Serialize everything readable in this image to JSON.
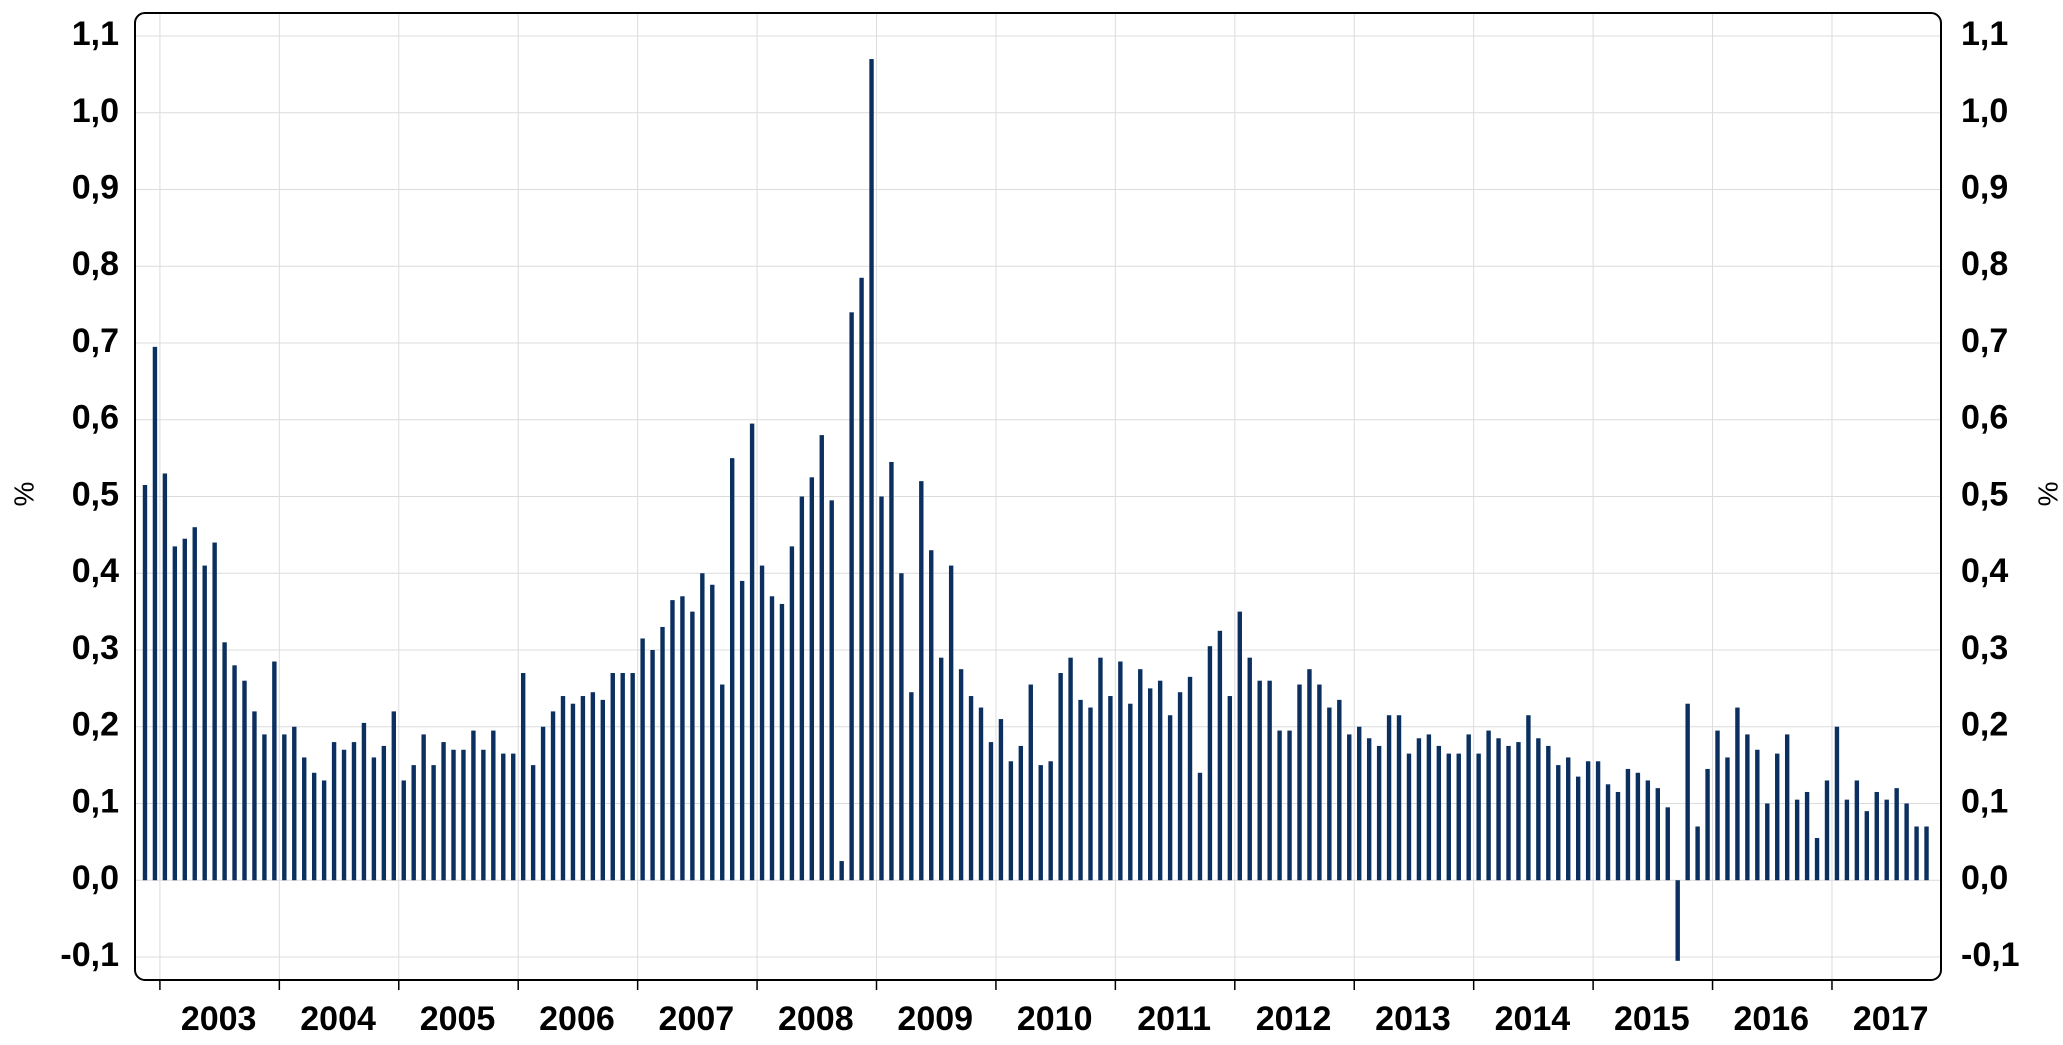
{
  "chart_data": {
    "type": "bar",
    "color": "#0b3060",
    "grid": true,
    "y_label": "%",
    "y2_label": "%",
    "ylim": [
      -0.13,
      1.13
    ],
    "yticks": [
      {
        "value": -0.1,
        "label": "-0,1"
      },
      {
        "value": 0,
        "label": "0,0"
      },
      {
        "value": 0.1,
        "label": "0,1"
      },
      {
        "value": 0.2,
        "label": "0,2"
      },
      {
        "value": 0.3,
        "label": "0,3"
      },
      {
        "value": 0.4,
        "label": "0,4"
      },
      {
        "value": 0.5,
        "label": "0,5"
      },
      {
        "value": 0.6,
        "label": "0,6"
      },
      {
        "value": 0.7,
        "label": "0,7"
      },
      {
        "value": 0.8,
        "label": "0,8"
      },
      {
        "value": 0.9,
        "label": "0,9"
      },
      {
        "value": 1.0,
        "label": "1,0"
      },
      {
        "value": 1.1,
        "label": "1,1"
      }
    ],
    "y2lim": [
      -0.13,
      1.13
    ],
    "y2ticks": [
      {
        "value": -0.1,
        "label": "-0,1"
      },
      {
        "value": 0,
        "label": "0,0"
      },
      {
        "value": 0.1,
        "label": "0,1"
      },
      {
        "value": 0.2,
        "label": "0,2"
      },
      {
        "value": 0.3,
        "label": "0,3"
      },
      {
        "value": 0.4,
        "label": "0,4"
      },
      {
        "value": 0.5,
        "label": "0,5"
      },
      {
        "value": 0.6,
        "label": "0,6"
      },
      {
        "value": 0.7,
        "label": "0,7"
      },
      {
        "value": 0.8,
        "label": "0,8"
      },
      {
        "value": 0.9,
        "label": "0,9"
      },
      {
        "value": 1.0,
        "label": "1,0"
      },
      {
        "value": 1.1,
        "label": "1,1"
      }
    ],
    "categories": [
      null,
      null,
      null,
      null,
      null,
      null,
      null,
      "2003",
      null,
      null,
      null,
      null,
      null,
      null,
      null,
      null,
      null,
      null,
      null,
      "2004",
      null,
      null,
      null,
      null,
      null,
      null,
      null,
      null,
      null,
      null,
      null,
      "2005",
      null,
      null,
      null,
      null,
      null,
      null,
      null,
      null,
      null,
      null,
      null,
      "2006",
      null,
      null,
      null,
      null,
      null,
      null,
      null,
      null,
      null,
      null,
      null,
      "2007",
      null,
      null,
      null,
      null,
      null,
      null,
      null,
      null,
      null,
      null,
      null,
      "2008",
      null,
      null,
      null,
      null,
      null,
      null,
      null,
      null,
      null,
      null,
      null,
      "2009",
      null,
      null,
      null,
      null,
      null,
      null,
      null,
      null,
      null,
      null,
      null,
      "2010",
      null,
      null,
      null,
      null,
      null,
      null,
      null,
      null,
      null,
      null,
      null,
      "2011",
      null,
      null,
      null,
      null,
      null,
      null,
      null,
      null,
      null,
      null,
      null,
      "2012",
      null,
      null,
      null,
      null,
      null,
      null,
      null,
      null,
      null,
      null,
      null,
      "2013",
      null,
      null,
      null,
      null,
      null,
      null,
      null,
      null,
      null,
      null,
      null,
      "2014",
      null,
      null,
      null,
      null,
      null,
      null,
      null,
      null,
      null,
      null,
      null,
      "2015",
      null,
      null,
      null,
      null,
      null,
      null,
      null,
      null,
      null,
      null,
      null,
      "2016",
      null,
      null,
      null,
      null,
      null,
      null,
      null,
      null,
      null,
      null,
      null,
      "2017",
      null,
      null,
      null,
      null
    ],
    "values": [
      0.515,
      0.695,
      0.53,
      0.435,
      0.445,
      0.46,
      0.41,
      0.44,
      0.31,
      0.28,
      0.26,
      0.22,
      0.19,
      0.285,
      0.19,
      0.2,
      0.16,
      0.14,
      0.13,
      0.18,
      0.17,
      0.18,
      0.205,
      0.16,
      0.175,
      0.22,
      0.13,
      0.15,
      0.19,
      0.15,
      0.18,
      0.17,
      0.17,
      0.195,
      0.17,
      0.195,
      0.165,
      0.165,
      0.27,
      0.15,
      0.2,
      0.22,
      0.24,
      0.23,
      0.24,
      0.245,
      0.235,
      0.27,
      0.27,
      0.27,
      0.315,
      0.3,
      0.33,
      0.365,
      0.37,
      0.35,
      0.4,
      0.385,
      0.255,
      0.55,
      0.39,
      0.595,
      0.41,
      0.37,
      0.36,
      0.435,
      0.5,
      0.525,
      0.58,
      0.495,
      0.025,
      0.74,
      0.785,
      1.07,
      0.5,
      0.545,
      0.4,
      0.245,
      0.52,
      0.43,
      0.29,
      0.41,
      0.275,
      0.24,
      0.225,
      0.18,
      0.21,
      0.155,
      0.175,
      0.255,
      0.15,
      0.155,
      0.27,
      0.29,
      0.235,
      0.225,
      0.29,
      0.24,
      0.285,
      0.23,
      0.275,
      0.25,
      0.26,
      0.215,
      0.245,
      0.265,
      0.14,
      0.305,
      0.325,
      0.24,
      0.35,
      0.29,
      0.26,
      0.26,
      0.195,
      0.195,
      0.255,
      0.275,
      0.255,
      0.225,
      0.235,
      0.19,
      0.2,
      0.185,
      0.175,
      0.215,
      0.215,
      0.165,
      0.185,
      0.19,
      0.175,
      0.165,
      0.165,
      0.19,
      0.165,
      0.195,
      0.185,
      0.175,
      0.18,
      0.215,
      0.185,
      0.175,
      0.15,
      0.16,
      0.135,
      0.155,
      0.155,
      0.125,
      0.115,
      0.145,
      0.14,
      0.13,
      0.12,
      0.095,
      -0.105,
      0.23,
      0.07,
      0.145,
      0.195,
      0.16,
      0.225,
      0.19,
      0.17,
      0.1,
      0.165,
      0.19,
      0.105,
      0.115,
      0.055,
      0.13,
      0.2,
      0.105,
      0.13,
      0.09,
      0.115,
      0.105,
      0.12,
      0.1,
      0.07,
      0.07
    ]
  }
}
